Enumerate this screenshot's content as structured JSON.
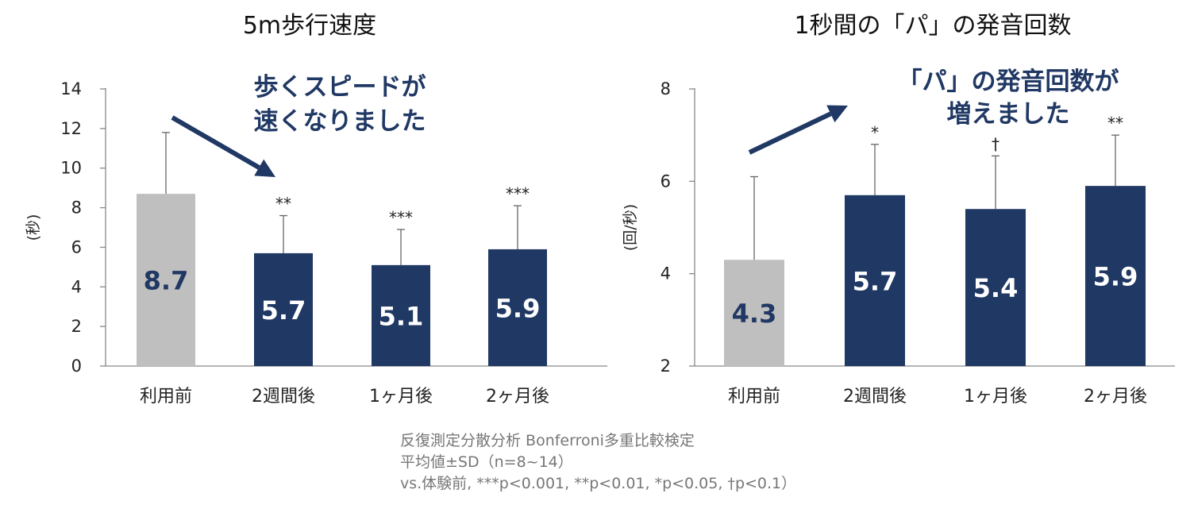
{
  "chart_data": [
    {
      "type": "bar",
      "title": "5m歩行速度",
      "ylabel": "(秒)",
      "xlabel": "",
      "categories": [
        "利用前",
        "2週間後",
        "1ヶ月後",
        "2ヶ月後"
      ],
      "values": [
        8.7,
        5.7,
        5.1,
        5.9
      ],
      "value_labels": [
        "8.7",
        "5.7",
        "5.1",
        "5.9"
      ],
      "error_upper": [
        11.8,
        7.6,
        6.9,
        8.1
      ],
      "significance": [
        "",
        "**",
        "***",
        "***"
      ],
      "ylim": [
        0,
        14
      ],
      "yticks": [
        0,
        2,
        4,
        6,
        8,
        10,
        12,
        14
      ],
      "annotation": [
        "歩くスピードが",
        "速くなりました"
      ],
      "colors": {
        "baseline": "#bfbfbf",
        "post": "#203864",
        "baseline_label": "#203864",
        "post_label": "#ffffff",
        "annotation": "#203864"
      },
      "grid": false,
      "legend": "none"
    },
    {
      "type": "bar",
      "title": "1秒間の「パ」の発音回数",
      "ylabel": "(回/秒)",
      "xlabel": "",
      "categories": [
        "利用前",
        "2週間後",
        "1ヶ月後",
        "2ヶ月後"
      ],
      "values": [
        4.3,
        5.7,
        5.4,
        5.9
      ],
      "value_labels": [
        "4.3",
        "5.7",
        "5.4",
        "5.9"
      ],
      "error_upper": [
        6.1,
        6.8,
        6.55,
        7.0
      ],
      "significance": [
        "",
        "*",
        "†",
        "**"
      ],
      "ylim": [
        2,
        8
      ],
      "yticks": [
        2,
        4,
        6,
        8
      ],
      "annotation": [
        "「パ」の発音回数が",
        "増えました"
      ],
      "colors": {
        "baseline": "#bfbfbf",
        "post": "#203864",
        "baseline_label": "#203864",
        "post_label": "#ffffff",
        "annotation": "#203864"
      },
      "grid": false,
      "legend": "none"
    }
  ],
  "notes": [
    "反復測定分散分析 Bonferroni多重比較検定",
    "平均値±SD（n=8~14）",
    "vs.体験前, ***p<0.001, **p<0.01, *p<0.05, †p<0.1）"
  ]
}
